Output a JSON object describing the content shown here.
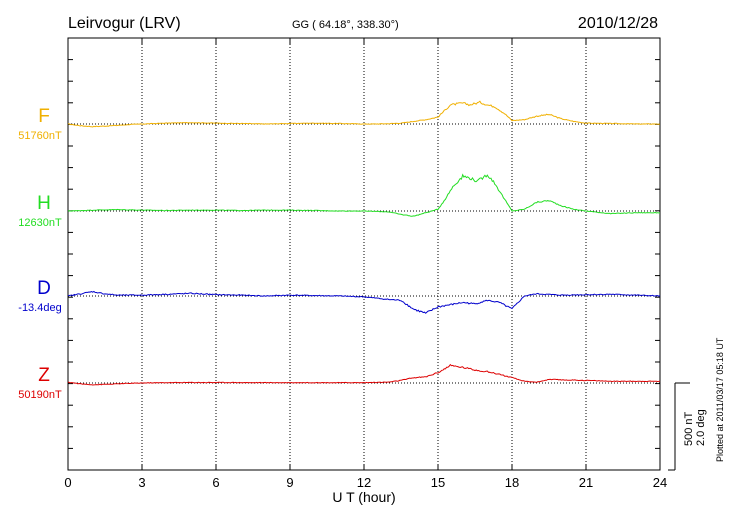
{
  "header": {
    "station": "Leirvogur (LRV)",
    "coords": "GG ( 64.18°, 338.30°)",
    "date": "2010/12/28"
  },
  "footer_note": "Plotted at 2011/03/17 05:18 UT",
  "scale_bar": {
    "label_nt": "500 nT",
    "label_deg": "2.0 deg"
  },
  "chart_data": {
    "type": "line",
    "xlabel": "U T (hour)",
    "xlim": [
      0,
      24
    ],
    "xticks": [
      0,
      3,
      6,
      9,
      12,
      15,
      18,
      21,
      24
    ],
    "xticks_labels": [
      "0",
      "3",
      "6",
      "9",
      "12",
      "15",
      "18",
      "21",
      "24"
    ],
    "grid": "vertical dotted at every 3 h",
    "scale_nt_per_bar": 500,
    "scale_deg_per_bar": 2.0,
    "series": [
      {
        "name": "F",
        "baseline_label": "51760nT",
        "units": "nT",
        "color": "#f0b000",
        "x": [
          0,
          0.5,
          1,
          1.5,
          2,
          2.5,
          3,
          4,
          5,
          6,
          7,
          8,
          9,
          10,
          11,
          12,
          12.5,
          13,
          13.5,
          14,
          14.5,
          15,
          15.5,
          16,
          16.3,
          16.7,
          17,
          17.3,
          17.7,
          18,
          18.5,
          19,
          19.5,
          20,
          20.5,
          21,
          22,
          23,
          24
        ],
        "y": [
          0,
          -10,
          -15,
          -12,
          -8,
          -3,
          0,
          5,
          8,
          5,
          3,
          0,
          3,
          5,
          3,
          0,
          0,
          2,
          5,
          15,
          25,
          40,
          110,
          120,
          110,
          125,
          110,
          100,
          60,
          20,
          25,
          45,
          55,
          30,
          15,
          5,
          3,
          0,
          0
        ]
      },
      {
        "name": "H",
        "baseline_label": "12630nT",
        "units": "nT",
        "color": "#22dd22",
        "x": [
          0,
          1,
          2,
          3,
          4,
          5,
          6,
          7,
          8,
          9,
          10,
          11,
          12,
          13,
          13.5,
          14,
          14.5,
          15,
          15.3,
          15.6,
          16,
          16.3,
          16.6,
          17,
          17.3,
          17.6,
          18,
          18.5,
          19,
          19.5,
          20,
          20.5,
          21,
          22,
          23,
          24
        ],
        "y": [
          0,
          5,
          8,
          5,
          3,
          5,
          5,
          3,
          5,
          5,
          3,
          0,
          0,
          -5,
          -20,
          -30,
          -10,
          10,
          70,
          140,
          200,
          190,
          170,
          210,
          160,
          90,
          0,
          10,
          50,
          60,
          30,
          10,
          0,
          -15,
          -10,
          -10
        ]
      },
      {
        "name": "D",
        "baseline_label": "-13.4deg",
        "units": "deg",
        "color": "#0000cc",
        "x": [
          0,
          0.5,
          1,
          1.5,
          2,
          3,
          4,
          5,
          6,
          7,
          8,
          9,
          10,
          11,
          12,
          13,
          13.5,
          14,
          14.5,
          15,
          15.5,
          16,
          16.5,
          17,
          17.5,
          18,
          18.5,
          19,
          20,
          21,
          22,
          23,
          24
        ],
        "y": [
          0,
          0.05,
          0.1,
          0.05,
          0.02,
          0.02,
          0.04,
          0.06,
          0.03,
          0.02,
          0.0,
          0.02,
          0.01,
          0.0,
          -0.02,
          -0.08,
          -0.1,
          -0.3,
          -0.4,
          -0.25,
          -0.2,
          -0.15,
          -0.18,
          -0.1,
          -0.15,
          -0.3,
          0.0,
          0.05,
          0.02,
          0.03,
          0.04,
          0.02,
          0.0
        ]
      },
      {
        "name": "Z",
        "baseline_label": "50190nT",
        "units": "nT",
        "color": "#dd0000",
        "x": [
          0,
          0.5,
          1,
          1.5,
          2,
          2.5,
          3,
          4,
          5,
          6,
          8,
          10,
          12,
          13,
          13.5,
          14,
          14.5,
          15,
          15.5,
          16,
          16.5,
          17,
          17.5,
          18,
          18.5,
          19,
          19.5,
          20,
          21,
          22,
          23,
          24
        ],
        "y": [
          5,
          -5,
          -10,
          -8,
          -5,
          -2,
          0,
          2,
          3,
          3,
          2,
          2,
          2,
          5,
          15,
          30,
          35,
          60,
          100,
          90,
          75,
          65,
          50,
          30,
          10,
          5,
          20,
          18,
          15,
          10,
          10,
          10
        ]
      }
    ]
  }
}
